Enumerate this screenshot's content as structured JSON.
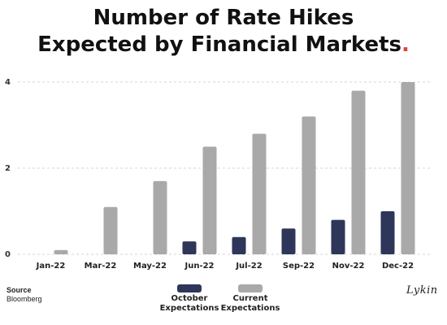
{
  "title": {
    "line1": "Number of Rate Hikes",
    "line2": "Expected by Financial Markets",
    "accent_dot": ".",
    "accent_color": "#e0403a"
  },
  "chart_data": {
    "type": "bar",
    "categories": [
      "Jan-22",
      "Mar-22",
      "May-22",
      "Jun-22",
      "Jul-22",
      "Sep-22",
      "Nov-22",
      "Dec-22"
    ],
    "series": [
      {
        "name": "October Expectations",
        "values": [
          0,
          0,
          0,
          0.3,
          0.4,
          0.6,
          0.8,
          1.0
        ],
        "color": "#2e3659"
      },
      {
        "name": "Current Expectations",
        "values": [
          0.1,
          1.1,
          1.7,
          2.5,
          2.8,
          3.2,
          3.8,
          4.0
        ],
        "color": "#a9a9a9"
      }
    ],
    "yticks": [
      0,
      2,
      4
    ],
    "ylim": [
      0,
      4
    ],
    "grid": "horizontal-dashed",
    "legend": "bottom-center"
  },
  "legend": {
    "october_line1": "October",
    "october_line2": "Expectations",
    "current_line1": "Current",
    "current_line2": "Expectations"
  },
  "source": {
    "label": "Source",
    "value": "Bloomberg"
  },
  "logo": {
    "text": "Lykin"
  }
}
